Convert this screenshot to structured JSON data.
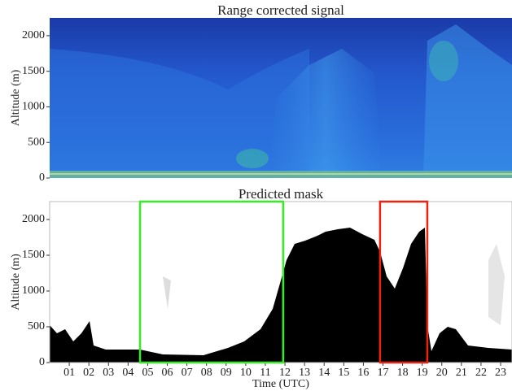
{
  "chart_data": [
    {
      "type": "heatmap",
      "title": "Range corrected signal",
      "ylabel": "Altitude (m)",
      "ylim": [
        0,
        2250
      ],
      "yticks": [
        0,
        500,
        1000,
        1500,
        2000
      ],
      "xlim": [
        0,
        23.58
      ]
    },
    {
      "type": "heatmap",
      "title": "Predicted mask",
      "ylabel": "Altitude (m)",
      "xlabel": "Time (UTC)",
      "ylim": [
        0,
        2250
      ],
      "yticks": [
        0,
        500,
        1000,
        1500,
        2000
      ],
      "xlim": [
        0,
        23.58
      ],
      "xticks": [
        {
          "value": 1,
          "label": "01"
        },
        {
          "value": 2,
          "label": "02"
        },
        {
          "value": 3,
          "label": "03"
        },
        {
          "value": 4,
          "label": "04"
        },
        {
          "value": 5,
          "label": "05"
        },
        {
          "value": 6,
          "label": "06"
        },
        {
          "value": 7,
          "label": "07"
        },
        {
          "value": 8,
          "label": "08"
        },
        {
          "value": 9,
          "label": "09"
        },
        {
          "value": 10,
          "label": "10"
        },
        {
          "value": 11,
          "label": "11"
        },
        {
          "value": 12,
          "label": "12"
        },
        {
          "value": 13,
          "label": "13"
        },
        {
          "value": 14,
          "label": "14"
        },
        {
          "value": 15,
          "label": "15"
        },
        {
          "value": 16,
          "label": "16"
        },
        {
          "value": 17,
          "label": "17"
        },
        {
          "value": 18,
          "label": "18"
        },
        {
          "value": 19,
          "label": "19"
        },
        {
          "value": 20,
          "label": "20"
        },
        {
          "value": 21,
          "label": "21"
        },
        {
          "value": 22,
          "label": "22"
        },
        {
          "value": 23,
          "label": "23"
        }
      ],
      "highlights": [
        {
          "x": [
            4.61,
            11.91
          ],
          "color": "#33ee22"
        },
        {
          "x": [
            16.85,
            19.26
          ],
          "color": "#ee2211"
        }
      ]
    }
  ]
}
